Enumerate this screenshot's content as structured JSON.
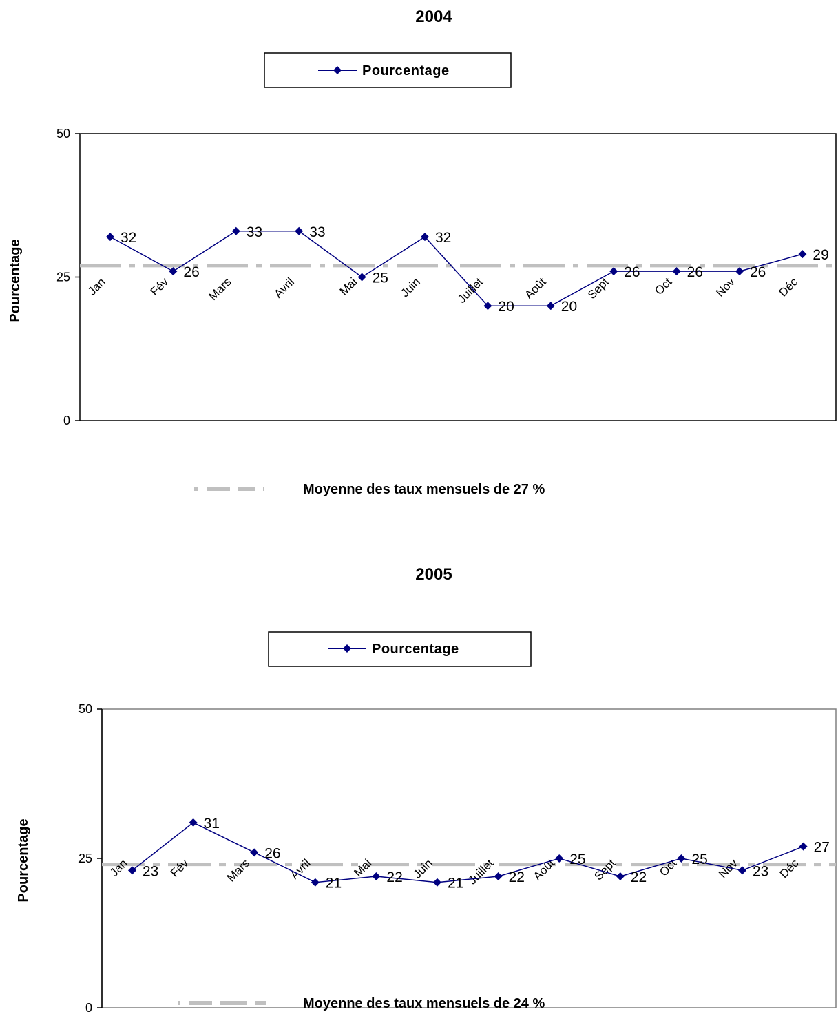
{
  "chart_data": [
    {
      "type": "line",
      "title": "2004",
      "ylabel": "Pourcentage",
      "ylim": [
        0,
        50
      ],
      "yticks": [
        0,
        25,
        50
      ],
      "categories": [
        "Jan",
        "Fév",
        "Mars",
        "Avril",
        "Mai",
        "Juin",
        "Juillet",
        "Août",
        "Sept",
        "Oct",
        "Nov",
        "Déc"
      ],
      "series": [
        {
          "name": "Pourcentage",
          "values": [
            32,
            26,
            33,
            33,
            25,
            32,
            20,
            20,
            26,
            26,
            26,
            29
          ],
          "color": "#000080"
        }
      ],
      "mean": {
        "value": 27,
        "label": "Moyenne des taux mensuels de 27 %",
        "color": "#c0c0c0"
      },
      "legend": "top"
    },
    {
      "type": "line",
      "title": "2005",
      "ylabel": "Pourcentage",
      "ylim": [
        0,
        50
      ],
      "yticks": [
        0,
        25,
        50
      ],
      "categories": [
        "Jan",
        "Fév",
        "Mars",
        "Avril",
        "Mai",
        "Juin",
        "Juillet",
        "Août",
        "Sept",
        "Oct",
        "Nov",
        "Déc"
      ],
      "series": [
        {
          "name": "Pourcentage",
          "values": [
            23,
            31,
            26,
            21,
            22,
            21,
            22,
            25,
            22,
            25,
            23,
            27
          ],
          "color": "#000080"
        }
      ],
      "mean": {
        "value": 24,
        "label": "Moyenne des taux mensuels de 24 %",
        "color": "#c0c0c0"
      },
      "legend": "top"
    }
  ]
}
